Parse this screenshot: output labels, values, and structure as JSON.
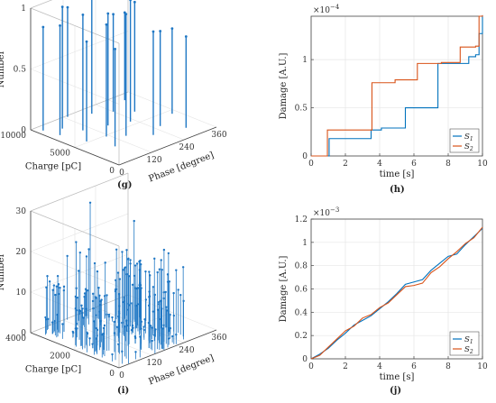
{
  "captions": {
    "g": "(g)",
    "h": "(h)",
    "i": "(i)",
    "j": "(j)"
  },
  "colors": {
    "s1": "#0072bd",
    "s2": "#d95319",
    "stem": "#1f77c4"
  },
  "chart_data": [
    {
      "id": "g",
      "type": "scatter",
      "subtype": "3d-stem",
      "xlabel": "Phase [degree]",
      "ylabel": "Charge [pC]",
      "zlabel": "Number",
      "x_ticks": [
        "0",
        "120",
        "240",
        "360"
      ],
      "y_ticks": [
        "0",
        "5000",
        "10000"
      ],
      "z_ticks": [
        "0",
        "0.5",
        "1"
      ],
      "xlim": [
        0,
        360
      ],
      "ylim": [
        0,
        10000
      ],
      "zlim": [
        0,
        1
      ],
      "points": [
        {
          "phase": 30,
          "charge": 7600,
          "number": 0.9
        },
        {
          "phase": 20,
          "charge": 9200,
          "number": 0.85
        },
        {
          "phase": 50,
          "charge": 5200,
          "number": 0.82
        },
        {
          "phase": 65,
          "charge": 8400,
          "number": 1.0
        },
        {
          "phase": 80,
          "charge": 2900,
          "number": 0.8
        },
        {
          "phase": 95,
          "charge": 7000,
          "number": 0.95
        },
        {
          "phase": 110,
          "charge": 4800,
          "number": 0.92
        },
        {
          "phase": 130,
          "charge": 9800,
          "number": 0.9
        },
        {
          "phase": 150,
          "charge": 3800,
          "number": 1.0
        },
        {
          "phase": 165,
          "charge": 6300,
          "number": 0.92
        },
        {
          "phase": 190,
          "charge": 8900,
          "number": 0.96
        },
        {
          "phase": 205,
          "charge": 2400,
          "number": 0.85
        },
        {
          "phase": 225,
          "charge": 5600,
          "number": 1.0
        },
        {
          "phase": 240,
          "charge": 8000,
          "number": 0.8
        },
        {
          "phase": 260,
          "charge": 3300,
          "number": 0.78
        },
        {
          "phase": 280,
          "charge": 6800,
          "number": 0.9
        },
        {
          "phase": 300,
          "charge": 1600,
          "number": 0.75
        },
        {
          "phase": 315,
          "charge": 9000,
          "number": 0.72
        },
        {
          "phase": 340,
          "charge": 4400,
          "number": 0.7
        }
      ]
    },
    {
      "id": "h",
      "type": "line",
      "subtype": "step",
      "xlabel": "time [s]",
      "ylabel": "Damage [A.U.]",
      "exponent": "×10",
      "exponent_power": "−4",
      "x_ticks": [
        "0",
        "2",
        "4",
        "6",
        "8",
        "10"
      ],
      "y_ticks": [
        "0",
        "0.5",
        "1"
      ],
      "xlim": [
        0,
        10
      ],
      "ylim": [
        0,
        1.45
      ],
      "grid": true,
      "legend_position": "bottom-right",
      "series": [
        {
          "name": "S",
          "subscript": "1",
          "x": [
            0,
            0.85,
            1.05,
            3.5,
            4.1,
            5.5,
            7.4,
            9.2,
            9.6,
            9.8,
            10
          ],
          "y": [
            0,
            0,
            0.18,
            0.27,
            0.29,
            0.5,
            0.96,
            1.03,
            1.05,
            1.27,
            1.46
          ]
        },
        {
          "name": "S",
          "subscript": "2",
          "x": [
            0,
            0.8,
            0.95,
            3.55,
            4.9,
            6.2,
            7.6,
            8.7,
            9.6,
            9.8,
            10
          ],
          "y": [
            0,
            0,
            0.27,
            0.76,
            0.79,
            0.96,
            0.97,
            1.13,
            1.14,
            1.45,
            1.46
          ]
        }
      ]
    },
    {
      "id": "i",
      "type": "scatter",
      "subtype": "3d-stem",
      "xlabel": "Phase [degree]",
      "ylabel": "Charge [pC]",
      "zlabel": "Number",
      "x_ticks": [
        "0",
        "120",
        "240",
        "360"
      ],
      "y_ticks": [
        "0",
        "2000",
        "4000"
      ],
      "z_ticks": [
        "0",
        "10",
        "20",
        "30"
      ],
      "xlim": [
        0,
        360
      ],
      "ylim": [
        0,
        4000
      ],
      "zlim": [
        0,
        30
      ],
      "clusters": [
        {
          "phase_center": 50,
          "phase_spread": 40,
          "charge_max": 4000,
          "number_max": 14,
          "count": 70
        },
        {
          "phase_center": 165,
          "phase_spread": 45,
          "charge_max": 4000,
          "number_max": 20,
          "count": 80
        },
        {
          "phase_center": 240,
          "phase_spread": 40,
          "charge_max": 3200,
          "number_max": 18,
          "count": 60
        }
      ]
    },
    {
      "id": "j",
      "type": "line",
      "xlabel": "time [s]",
      "ylabel": "Damage [A.U.]",
      "exponent": "×10",
      "exponent_power": "−3",
      "x_ticks": [
        "0",
        "2",
        "4",
        "6",
        "8",
        "10"
      ],
      "y_ticks": [
        "0",
        "0.2",
        "0.4",
        "0.6",
        "0.8",
        "1",
        "1.2"
      ],
      "xlim": [
        0,
        10
      ],
      "ylim": [
        0,
        1.2
      ],
      "grid": true,
      "legend_position": "bottom-right",
      "series": [
        {
          "name": "S",
          "subscript": "1",
          "x": [
            0,
            0.5,
            1,
            1.5,
            2,
            2.5,
            3,
            3.5,
            4,
            4.5,
            5,
            5.5,
            6,
            6.5,
            7,
            7.5,
            8,
            8.5,
            9,
            9.5,
            10
          ],
          "y": [
            0,
            0.04,
            0.09,
            0.16,
            0.22,
            0.29,
            0.33,
            0.37,
            0.43,
            0.49,
            0.56,
            0.64,
            0.66,
            0.68,
            0.76,
            0.82,
            0.88,
            0.9,
            0.98,
            1.05,
            1.12
          ]
        },
        {
          "name": "S",
          "subscript": "2",
          "x": [
            0,
            0.5,
            1,
            1.5,
            2,
            2.5,
            3,
            3.5,
            4,
            4.5,
            5,
            5.5,
            6,
            6.5,
            7,
            7.5,
            8,
            8.5,
            9,
            9.5,
            10
          ],
          "y": [
            0,
            0.03,
            0.1,
            0.17,
            0.24,
            0.28,
            0.35,
            0.38,
            0.44,
            0.48,
            0.55,
            0.62,
            0.63,
            0.65,
            0.74,
            0.79,
            0.86,
            0.92,
            0.99,
            1.04,
            1.13
          ]
        }
      ]
    }
  ]
}
